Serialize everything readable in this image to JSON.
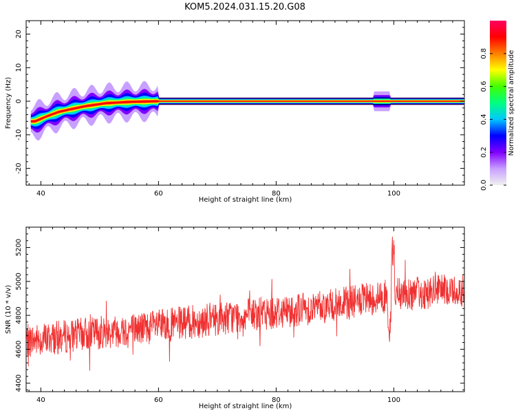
{
  "figure": {
    "title": "KOM5.2024.031.15.20.G08"
  },
  "chart_data": [
    {
      "type": "heatmap",
      "xlabel": "Height of straight line (km)",
      "ylabel": "Frequency (Hz)",
      "xlim": [
        37.5,
        112
      ],
      "ylim": [
        -25,
        24
      ],
      "xticks": [
        40,
        60,
        80,
        100
      ],
      "yticks": [
        -20,
        -10,
        0,
        10,
        20
      ],
      "ridge": [
        {
          "x": 39,
          "y": -6
        },
        {
          "x": 41,
          "y": -4.5
        },
        {
          "x": 43,
          "y": -3.2
        },
        {
          "x": 45,
          "y": -2.4
        },
        {
          "x": 47.5,
          "y": -1.5
        },
        {
          "x": 51,
          "y": -0.6
        },
        {
          "x": 55,
          "y": -0.2
        },
        {
          "x": 60,
          "y": 0
        },
        {
          "x": 112,
          "y": 0
        }
      ],
      "colorbar": {
        "label": "Normalized spectral amplitude",
        "range": [
          0,
          1
        ],
        "ticks": [
          0.0,
          0.2,
          0.4,
          0.6,
          0.8
        ],
        "colors": [
          "#f0f0f0",
          "#c8a0ff",
          "#8000ff",
          "#0000ff",
          "#00c8ff",
          "#00ff80",
          "#40ff00",
          "#ffff00",
          "#ff8000",
          "#ff0000",
          "#ff0060"
        ]
      }
    },
    {
      "type": "line",
      "xlabel": "Height of straight line (km)",
      "ylabel": "SNR (10 * v/v)",
      "xlim": [
        37.5,
        112
      ],
      "ylim": [
        4350,
        5320
      ],
      "xticks": [
        40,
        60,
        80,
        100
      ],
      "yticks": [
        4400,
        4600,
        4800,
        5000,
        5200
      ],
      "series": [
        {
          "color": "#f03030",
          "trend": [
            {
              "x": 38,
              "y": 4650
            },
            {
              "x": 50,
              "y": 4700
            },
            {
              "x": 60,
              "y": 4735
            },
            {
              "x": 70,
              "y": 4780
            },
            {
              "x": 80,
              "y": 4820
            },
            {
              "x": 90,
              "y": 4860
            },
            {
              "x": 100,
              "y": 4920
            },
            {
              "x": 112,
              "y": 4950
            }
          ],
          "noise_amplitude": 100
        }
      ]
    }
  ]
}
